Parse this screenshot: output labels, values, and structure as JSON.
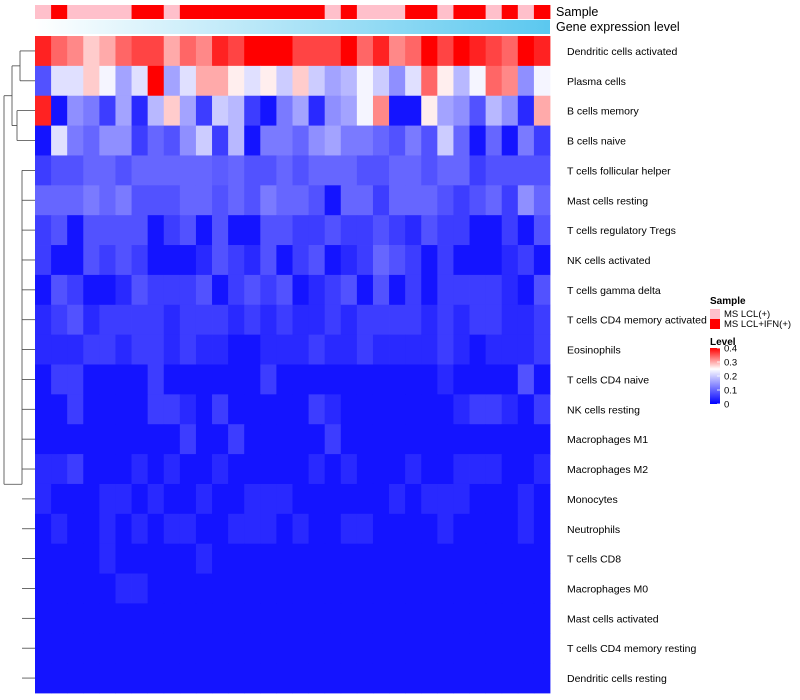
{
  "chart_data": {
    "type": "heatmap",
    "annotation_rows": [
      "Sample",
      "Gene expression level"
    ],
    "sample_colors": {
      "MS LCL(+)": "#ffc0cb",
      "MS LCL+IFN(+)": "#ff0000"
    },
    "sample_annotation": [
      "MS LCL(+)",
      "MS LCL+IFN(+)",
      "MS LCL(+)",
      "MS LCL(+)",
      "MS LCL(+)",
      "MS LCL(+)",
      "MS LCL+IFN(+)",
      "MS LCL+IFN(+)",
      "MS LCL(+)",
      "MS LCL+IFN(+)",
      "MS LCL+IFN(+)",
      "MS LCL+IFN(+)",
      "MS LCL+IFN(+)",
      "MS LCL+IFN(+)",
      "MS LCL+IFN(+)",
      "MS LCL+IFN(+)",
      "MS LCL+IFN(+)",
      "MS LCL+IFN(+)",
      "MS LCL(+)",
      "MS LCL+IFN(+)",
      "MS LCL(+)",
      "MS LCL(+)",
      "MS LCL(+)",
      "MS LCL+IFN(+)",
      "MS LCL+IFN(+)",
      "MS LCL(+)",
      "MS LCL+IFN(+)",
      "MS LCL+IFN(+)",
      "MS LCL(+)",
      "MS LCL+IFN(+)",
      "MS LCL(+)",
      "MS LCL+IFN(+)"
    ],
    "expression_gradient": [
      "#ffffff",
      "#5bc8ef"
    ],
    "rows": [
      "Dendritic cells activated",
      "Plasma cells",
      "B cells memory",
      "B cells naive",
      "T cells follicular helper",
      "Mast cells resting",
      "T cells regulatory  Tregs",
      "NK cells activated",
      "T cells gamma delta",
      "T cells CD4 memory activated",
      "Eosinophils",
      "T cells CD4 naive",
      "NK cells resting",
      "Macrophages M1",
      "Macrophages M2",
      "Monocytes",
      "Neutrophils",
      "T cells CD8",
      "Macrophages M0",
      "Mast cells activated",
      "T cells CD4 memory resting",
      "Dendritic cells resting"
    ],
    "values": [
      [
        0.38,
        0.34,
        0.32,
        0.28,
        0.3,
        0.34,
        0.36,
        0.36,
        0.3,
        0.34,
        0.32,
        0.38,
        0.36,
        0.4,
        0.4,
        0.4,
        0.36,
        0.36,
        0.36,
        0.4,
        0.34,
        0.38,
        0.32,
        0.34,
        0.4,
        0.36,
        0.4,
        0.38,
        0.36,
        0.34,
        0.4,
        0.38
      ],
      [
        0.08,
        0.22,
        0.22,
        0.28,
        0.24,
        0.16,
        0.22,
        0.4,
        0.16,
        0.22,
        0.3,
        0.3,
        0.26,
        0.22,
        0.26,
        0.2,
        0.28,
        0.2,
        0.16,
        0.18,
        0.24,
        0.2,
        0.14,
        0.22,
        0.34,
        0.26,
        0.18,
        0.24,
        0.34,
        0.32,
        0.14,
        0.24
      ],
      [
        0.38,
        0.02,
        0.14,
        0.12,
        0.06,
        0.16,
        0.04,
        0.18,
        0.28,
        0.16,
        0.06,
        0.2,
        0.18,
        0.06,
        0.02,
        0.12,
        0.16,
        0.04,
        0.14,
        0.16,
        0.24,
        0.32,
        0.02,
        0.02,
        0.26,
        0.16,
        0.14,
        0.08,
        0.18,
        0.14,
        0.04,
        0.3
      ],
      [
        0.02,
        0.22,
        0.12,
        0.1,
        0.14,
        0.14,
        0.06,
        0.1,
        0.08,
        0.14,
        0.2,
        0.06,
        0.18,
        0.02,
        0.12,
        0.12,
        0.1,
        0.14,
        0.16,
        0.12,
        0.12,
        0.1,
        0.08,
        0.12,
        0.08,
        0.2,
        0.1,
        0.02,
        0.1,
        0.02,
        0.12,
        0.06
      ],
      [
        0.06,
        0.08,
        0.08,
        0.1,
        0.1,
        0.08,
        0.1,
        0.1,
        0.1,
        0.1,
        0.1,
        0.09,
        0.1,
        0.08,
        0.08,
        0.1,
        0.08,
        0.1,
        0.1,
        0.1,
        0.08,
        0.08,
        0.1,
        0.1,
        0.08,
        0.1,
        0.1,
        0.06,
        0.08,
        0.08,
        0.08,
        0.08
      ],
      [
        0.1,
        0.1,
        0.1,
        0.12,
        0.1,
        0.12,
        0.08,
        0.08,
        0.08,
        0.1,
        0.1,
        0.08,
        0.1,
        0.08,
        0.12,
        0.1,
        0.1,
        0.08,
        0.02,
        0.1,
        0.1,
        0.06,
        0.1,
        0.1,
        0.1,
        0.08,
        0.06,
        0.08,
        0.1,
        0.06,
        0.14,
        0.1
      ],
      [
        0.06,
        0.08,
        0.02,
        0.08,
        0.08,
        0.08,
        0.08,
        0.02,
        0.06,
        0.08,
        0.02,
        0.08,
        0.02,
        0.02,
        0.08,
        0.08,
        0.06,
        0.06,
        0.08,
        0.06,
        0.06,
        0.08,
        0.06,
        0.04,
        0.08,
        0.06,
        0.06,
        0.02,
        0.02,
        0.06,
        0.02,
        0.08
      ],
      [
        0.06,
        0.02,
        0.02,
        0.08,
        0.06,
        0.08,
        0.06,
        0.02,
        0.02,
        0.02,
        0.04,
        0.08,
        0.06,
        0.04,
        0.08,
        0.02,
        0.06,
        0.08,
        0.02,
        0.04,
        0.06,
        0.1,
        0.08,
        0.06,
        0.02,
        0.06,
        0.02,
        0.02,
        0.02,
        0.04,
        0.06,
        0.02
      ],
      [
        0.02,
        0.08,
        0.06,
        0.02,
        0.02,
        0.04,
        0.08,
        0.06,
        0.06,
        0.06,
        0.08,
        0.02,
        0.06,
        0.08,
        0.06,
        0.08,
        0.02,
        0.04,
        0.06,
        0.08,
        0.02,
        0.08,
        0.02,
        0.06,
        0.02,
        0.06,
        0.06,
        0.06,
        0.06,
        0.04,
        0.02,
        0.08
      ],
      [
        0.04,
        0.06,
        0.08,
        0.04,
        0.06,
        0.06,
        0.06,
        0.06,
        0.04,
        0.06,
        0.06,
        0.06,
        0.04,
        0.06,
        0.04,
        0.06,
        0.04,
        0.04,
        0.06,
        0.04,
        0.06,
        0.06,
        0.06,
        0.06,
        0.04,
        0.06,
        0.04,
        0.06,
        0.06,
        0.04,
        0.04,
        0.06
      ],
      [
        0.04,
        0.04,
        0.04,
        0.06,
        0.06,
        0.04,
        0.06,
        0.06,
        0.04,
        0.06,
        0.04,
        0.04,
        0.02,
        0.02,
        0.04,
        0.04,
        0.04,
        0.06,
        0.04,
        0.04,
        0.06,
        0.04,
        0.04,
        0.04,
        0.04,
        0.06,
        0.04,
        0.02,
        0.04,
        0.04,
        0.04,
        0.06
      ],
      [
        0.02,
        0.06,
        0.06,
        0.02,
        0.02,
        0.02,
        0.02,
        0.06,
        0.02,
        0.02,
        0.02,
        0.02,
        0.02,
        0.02,
        0.06,
        0.02,
        0.02,
        0.02,
        0.02,
        0.02,
        0.02,
        0.02,
        0.02,
        0.02,
        0.02,
        0.04,
        0.02,
        0.02,
        0.02,
        0.02,
        0.08,
        0.02
      ],
      [
        0.02,
        0.02,
        0.06,
        0.02,
        0.02,
        0.02,
        0.02,
        0.06,
        0.06,
        0.04,
        0.02,
        0.06,
        0.02,
        0.02,
        0.02,
        0.02,
        0.02,
        0.06,
        0.04,
        0.02,
        0.02,
        0.02,
        0.02,
        0.02,
        0.02,
        0.02,
        0.04,
        0.06,
        0.06,
        0.04,
        0.02,
        0.06
      ],
      [
        0.02,
        0.02,
        0.02,
        0.02,
        0.02,
        0.02,
        0.02,
        0.02,
        0.02,
        0.06,
        0.02,
        0.02,
        0.06,
        0.02,
        0.02,
        0.02,
        0.02,
        0.02,
        0.06,
        0.02,
        0.02,
        0.02,
        0.02,
        0.02,
        0.02,
        0.02,
        0.02,
        0.02,
        0.02,
        0.02,
        0.02,
        0.02
      ],
      [
        0.04,
        0.04,
        0.06,
        0.02,
        0.02,
        0.02,
        0.04,
        0.02,
        0.04,
        0.02,
        0.02,
        0.04,
        0.02,
        0.02,
        0.02,
        0.02,
        0.02,
        0.04,
        0.02,
        0.04,
        0.02,
        0.02,
        0.02,
        0.04,
        0.02,
        0.02,
        0.04,
        0.04,
        0.04,
        0.02,
        0.02,
        0.04
      ],
      [
        0.04,
        0.02,
        0.02,
        0.02,
        0.04,
        0.04,
        0.02,
        0.04,
        0.02,
        0.02,
        0.04,
        0.02,
        0.02,
        0.04,
        0.04,
        0.04,
        0.02,
        0.02,
        0.02,
        0.02,
        0.02,
        0.02,
        0.04,
        0.02,
        0.04,
        0.04,
        0.04,
        0.02,
        0.02,
        0.02,
        0.04,
        0.02
      ],
      [
        0.02,
        0.04,
        0.02,
        0.02,
        0.04,
        0.02,
        0.04,
        0.02,
        0.04,
        0.04,
        0.02,
        0.02,
        0.04,
        0.04,
        0.04,
        0.02,
        0.04,
        0.02,
        0.02,
        0.04,
        0.04,
        0.02,
        0.02,
        0.02,
        0.02,
        0.04,
        0.02,
        0.02,
        0.02,
        0.02,
        0.04,
        0.02
      ],
      [
        0.02,
        0.02,
        0.02,
        0.02,
        0.04,
        0.02,
        0.02,
        0.02,
        0.02,
        0.02,
        0.04,
        0.02,
        0.02,
        0.02,
        0.02,
        0.02,
        0.02,
        0.02,
        0.02,
        0.02,
        0.02,
        0.02,
        0.02,
        0.02,
        0.02,
        0.02,
        0.02,
        0.02,
        0.02,
        0.02,
        0.02,
        0.02
      ],
      [
        0.02,
        0.02,
        0.02,
        0.02,
        0.02,
        0.04,
        0.04,
        0.02,
        0.02,
        0.02,
        0.02,
        0.02,
        0.02,
        0.02,
        0.02,
        0.02,
        0.02,
        0.02,
        0.02,
        0.02,
        0.02,
        0.02,
        0.02,
        0.02,
        0.02,
        0.02,
        0.02,
        0.02,
        0.02,
        0.02,
        0.02,
        0.02
      ],
      [
        0.02,
        0.02,
        0.02,
        0.02,
        0.02,
        0.02,
        0.02,
        0.02,
        0.02,
        0.02,
        0.02,
        0.02,
        0.02,
        0.02,
        0.02,
        0.02,
        0.02,
        0.02,
        0.02,
        0.02,
        0.02,
        0.02,
        0.02,
        0.02,
        0.02,
        0.02,
        0.02,
        0.02,
        0.02,
        0.02,
        0.02,
        0.02
      ],
      [
        0.02,
        0.02,
        0.02,
        0.02,
        0.02,
        0.02,
        0.02,
        0.02,
        0.02,
        0.02,
        0.02,
        0.02,
        0.02,
        0.02,
        0.02,
        0.02,
        0.02,
        0.02,
        0.02,
        0.02,
        0.02,
        0.02,
        0.02,
        0.02,
        0.02,
        0.02,
        0.02,
        0.02,
        0.02,
        0.02,
        0.02,
        0.02
      ],
      [
        0.02,
        0.02,
        0.02,
        0.02,
        0.02,
        0.02,
        0.02,
        0.02,
        0.02,
        0.02,
        0.02,
        0.02,
        0.02,
        0.02,
        0.02,
        0.02,
        0.02,
        0.02,
        0.02,
        0.02,
        0.02,
        0.02,
        0.02,
        0.02,
        0.02,
        0.02,
        0.02,
        0.02,
        0.02,
        0.02,
        0.02,
        0.02
      ]
    ],
    "color_scale": {
      "low": "#0000ff",
      "mid": "#ffffff",
      "high": "#ff0000",
      "min": 0,
      "mid_value": 0.25,
      "max": 0.4
    },
    "legend": {
      "sample_title": "Sample",
      "sample_entries": [
        "MS LCL(+)",
        "MS LCL+IFN(+)"
      ],
      "level_title": "Level",
      "level_ticks": [
        "0.4",
        "0.3",
        "0.2",
        "0.1",
        "0"
      ]
    }
  }
}
